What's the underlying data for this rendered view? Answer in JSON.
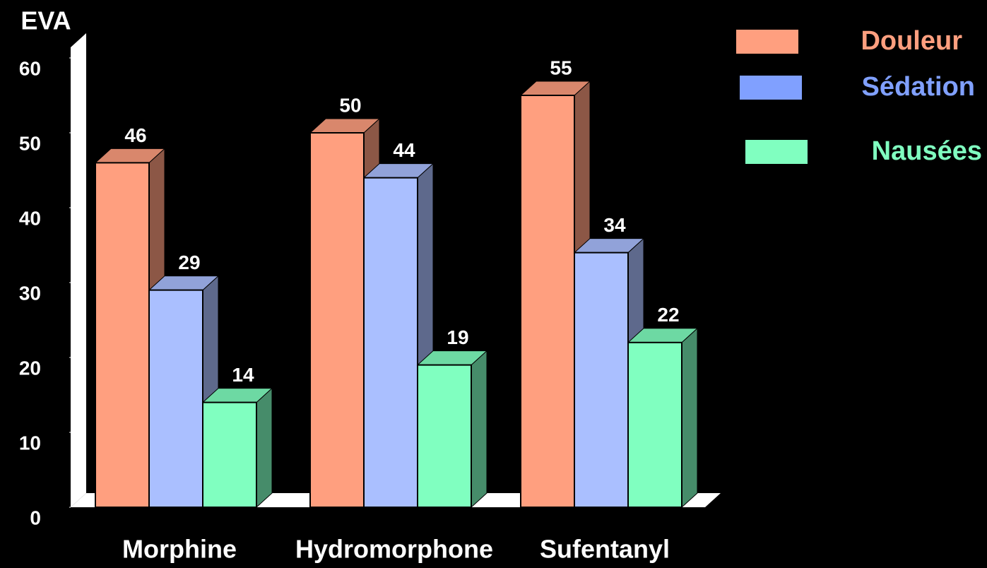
{
  "chart_data": {
    "type": "bar3d",
    "y_label": "EVA",
    "categories": [
      "Morphine",
      "Hydromorphone",
      "Sufentanyl"
    ],
    "series": [
      {
        "name": "Douleur",
        "color": "#ff9f7f",
        "values": [
          46,
          50,
          55
        ]
      },
      {
        "name": "Sédation",
        "color": "#aabfff",
        "values": [
          29,
          44,
          34
        ]
      },
      {
        "name": "Nausées",
        "color": "#80ffc0",
        "values": [
          14,
          19,
          22
        ]
      }
    ],
    "legend_colors": [
      "#ff9f7f",
      "#80a0ff",
      "#80ffc0"
    ],
    "ylim": [
      0,
      60
    ],
    "yticks": [
      0,
      10,
      20,
      30,
      40,
      50,
      60
    ],
    "legend": "right"
  }
}
